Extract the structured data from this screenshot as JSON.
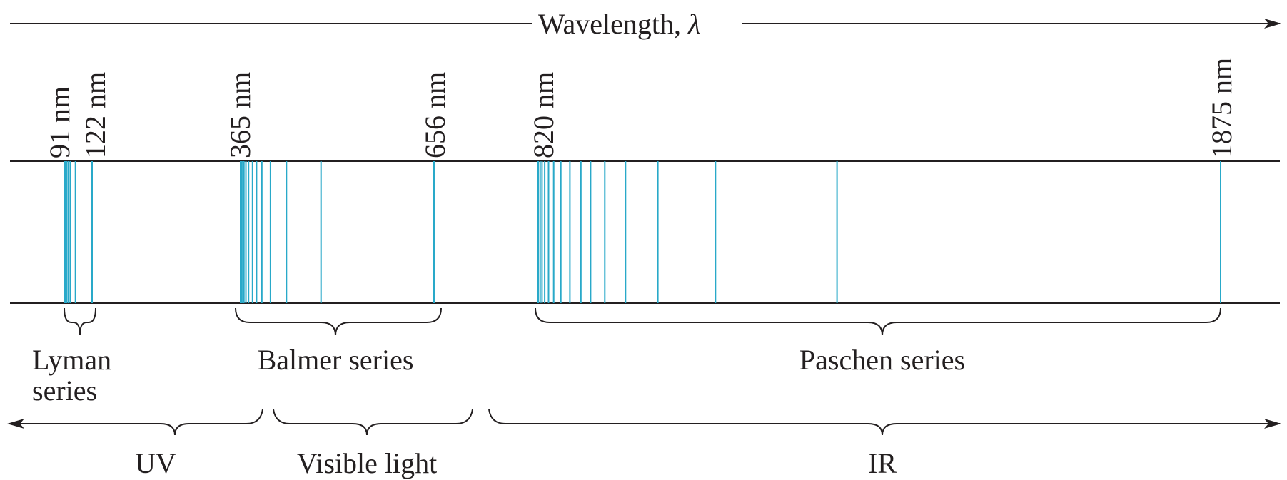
{
  "axis_title": "Wavelength, ",
  "axis_symbol": "λ",
  "tick_labels": {
    "lyman_limit": "91 nm",
    "lyman_alpha": "122 nm",
    "balmer_limit": "365 nm",
    "balmer_alpha": "656 nm",
    "paschen_limit": "820 nm",
    "paschen_alpha": "1875 nm"
  },
  "series_labels": {
    "lyman_line1": "Lyman",
    "lyman_line2": "series",
    "balmer": "Balmer series",
    "paschen": "Paschen series"
  },
  "region_labels": {
    "uv": "UV",
    "visible": "Visible light",
    "ir": "IR"
  },
  "line_color": "#29a9c9",
  "ink_color": "#231f20",
  "spectral_lines": {
    "lyman_nm": [
      91,
      93,
      95,
      97,
      103,
      122
    ],
    "balmer_nm": [
      365,
      367,
      370,
      373,
      377,
      383,
      389,
      397,
      410,
      434,
      486,
      656
    ],
    "paschen_nm": [
      820,
      823,
      826,
      830,
      836,
      844,
      855,
      869,
      886,
      901,
      923,
      955,
      1005,
      1094,
      1282,
      1875
    ]
  }
}
